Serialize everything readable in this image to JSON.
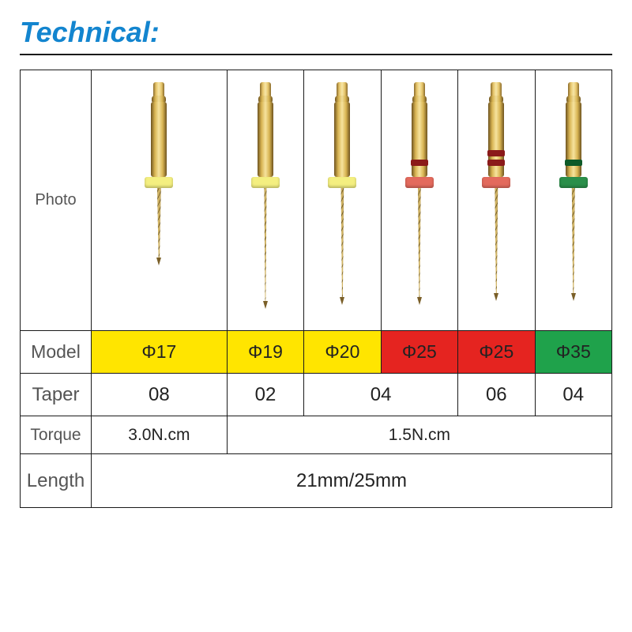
{
  "title": {
    "text": "Technical:",
    "color": "#1385cf",
    "underline_color": "#1a1a1a"
  },
  "rows": {
    "photo_label": "Photo",
    "model_label": "Model",
    "taper_label": "Taper",
    "torque_label": "Torque",
    "length_label": "Length"
  },
  "files": [
    {
      "model": "Φ17",
      "model_bg": "#ffe500",
      "stopper_color": "#f4ef80",
      "band_color": null,
      "shaft_len": 90,
      "flute_len": 90,
      "flute_width": 16
    },
    {
      "model": "Φ19",
      "model_bg": "#ffe500",
      "stopper_color": "#f4ef80",
      "band_color": null,
      "shaft_len": 145,
      "flute_len": 145,
      "flute_width": 10
    },
    {
      "model": "Φ20",
      "model_bg": "#ffe500",
      "stopper_color": "#f4ef80",
      "band_color": null,
      "shaft_len": 140,
      "flute_len": 140,
      "flute_width": 12
    },
    {
      "model": "Φ25",
      "model_bg": "#e52420",
      "stopper_color": "#e36a5d",
      "band_color": "#8b1a1a",
      "shaft_len": 140,
      "flute_len": 140,
      "flute_width": 12
    },
    {
      "model": "Φ25",
      "model_bg": "#e52420",
      "stopper_color": "#e36a5d",
      "band_color": "#8b1a1a",
      "band_double": true,
      "shaft_len": 135,
      "flute_len": 135,
      "flute_width": 13
    },
    {
      "model": "Φ35",
      "model_bg": "#1fa24b",
      "stopper_color": "#2a8f4a",
      "band_color": "#0e5a28",
      "shaft_len": 135,
      "flute_len": 135,
      "flute_width": 13
    }
  ],
  "taper": {
    "cells": [
      {
        "value": "08",
        "span": 1
      },
      {
        "value": "02",
        "span": 1
      },
      {
        "value": "04",
        "span": 2
      },
      {
        "value": "06",
        "span": 1
      },
      {
        "value": "04",
        "span": 1
      }
    ]
  },
  "torque": {
    "cells": [
      {
        "value": "3.0N.cm",
        "span": 1
      },
      {
        "value": "1.5N.cm",
        "span": 5
      }
    ]
  },
  "length_value": "21mm/25mm",
  "colors": {
    "border": "#1a1a1a",
    "label_text": "#555555"
  }
}
